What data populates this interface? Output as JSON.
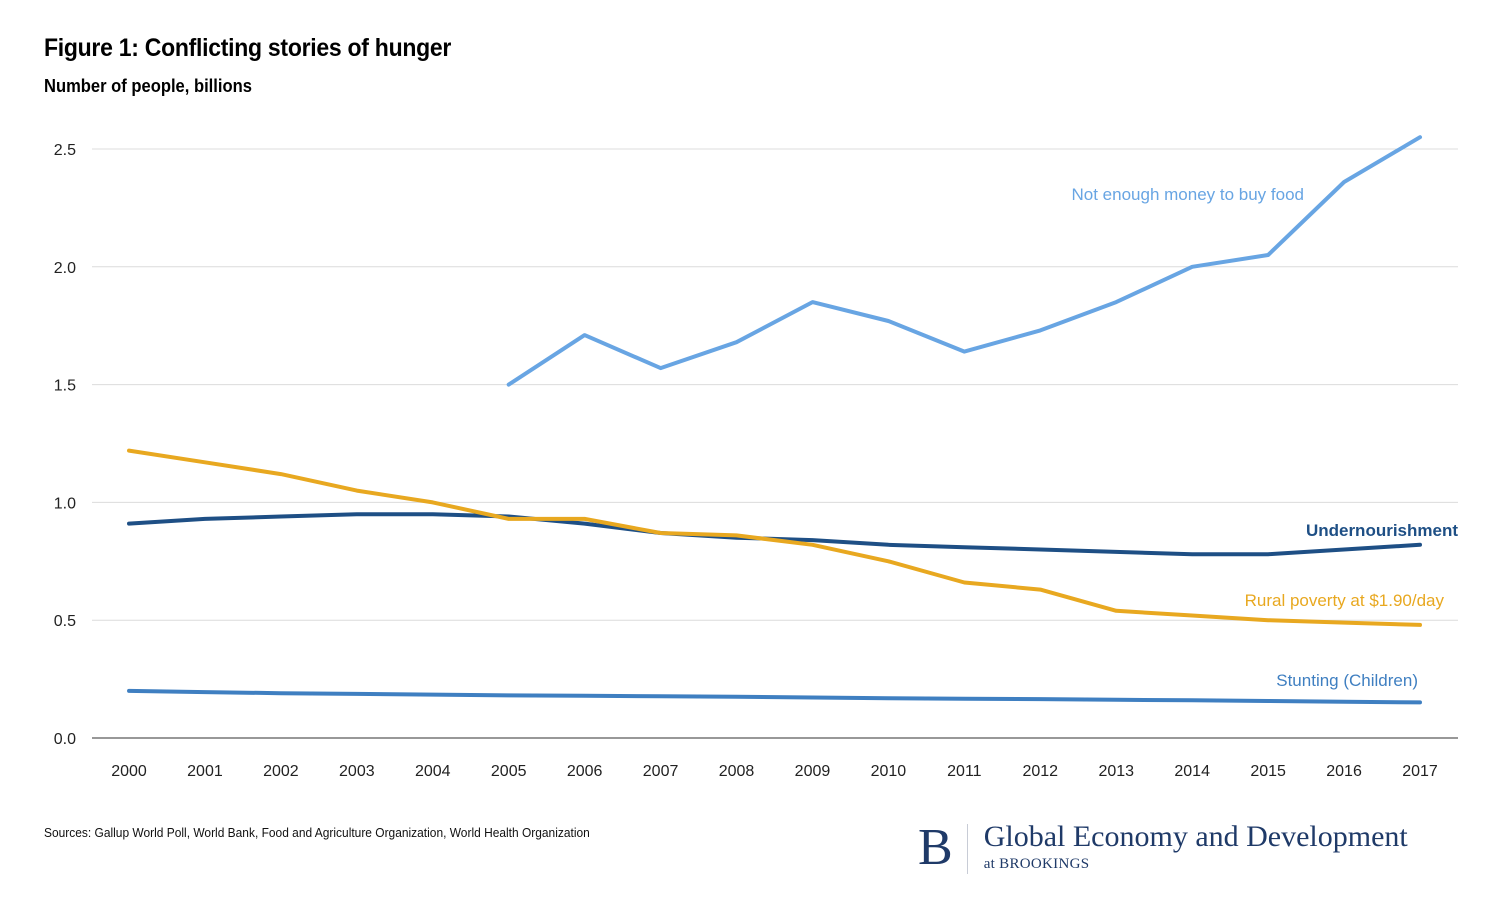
{
  "header": {
    "title": "Figure 1: Conflicting stories of hunger",
    "subtitle": "Number of people, billions"
  },
  "footer": {
    "sources": "Sources: Gallup World Poll, World Bank, Food and Agriculture Organization, World Health Organization",
    "logo_letter": "B",
    "logo_main": "Global Economy and Development",
    "logo_sub": "at BROOKINGS"
  },
  "chart_data": {
    "type": "line",
    "title": "Figure 1: Conflicting stories of hunger",
    "subtitle": "Number of people, billions",
    "xlabel": "",
    "ylabel": "Number of people, billions",
    "x": [
      2000,
      2001,
      2002,
      2003,
      2004,
      2005,
      2006,
      2007,
      2008,
      2009,
      2010,
      2011,
      2012,
      2013,
      2014,
      2015,
      2016,
      2017
    ],
    "x_tick_labels": [
      "2000",
      "2001",
      "2002",
      "2003",
      "2004",
      "2005",
      "2006",
      "2007",
      "2008",
      "2009",
      "2010",
      "2011",
      "2012",
      "2013",
      "2014",
      "2015",
      "2016",
      "2017"
    ],
    "ylim": [
      0,
      2.5
    ],
    "y_ticks": [
      0.0,
      0.5,
      1.0,
      1.5,
      2.0,
      2.5
    ],
    "y_tick_labels": [
      "0.0",
      "0.5",
      "1.0",
      "1.5",
      "2.0",
      "2.5"
    ],
    "grid": true,
    "legend": "inline-labels",
    "series": [
      {
        "name": "Not enough money to buy food",
        "color": "#68a5e3",
        "values": [
          null,
          null,
          null,
          null,
          null,
          1.5,
          1.71,
          1.57,
          1.68,
          1.85,
          1.77,
          1.64,
          1.73,
          1.85,
          2.0,
          2.05,
          2.36,
          2.55
        ]
      },
      {
        "name": "Undernourishment",
        "color": "#1e4f85",
        "values": [
          0.91,
          0.93,
          0.94,
          0.95,
          0.95,
          0.94,
          0.91,
          0.87,
          0.85,
          0.84,
          0.82,
          0.81,
          0.8,
          0.79,
          0.78,
          0.78,
          0.8,
          0.82
        ]
      },
      {
        "name": "Rural poverty at $1.90/day",
        "color": "#e8a820",
        "values": [
          1.22,
          1.17,
          1.12,
          1.05,
          1.0,
          0.93,
          0.93,
          0.87,
          0.86,
          0.82,
          0.75,
          0.66,
          0.63,
          0.54,
          0.52,
          0.5,
          0.49,
          0.48
        ]
      },
      {
        "name": "Stunting (Children)",
        "color": "#3f7fc1",
        "values": [
          0.2,
          0.195,
          0.19,
          0.187,
          0.184,
          0.181,
          0.179,
          0.177,
          0.175,
          0.172,
          0.169,
          0.167,
          0.165,
          0.162,
          0.16,
          0.157,
          0.154,
          0.151
        ]
      }
    ]
  }
}
